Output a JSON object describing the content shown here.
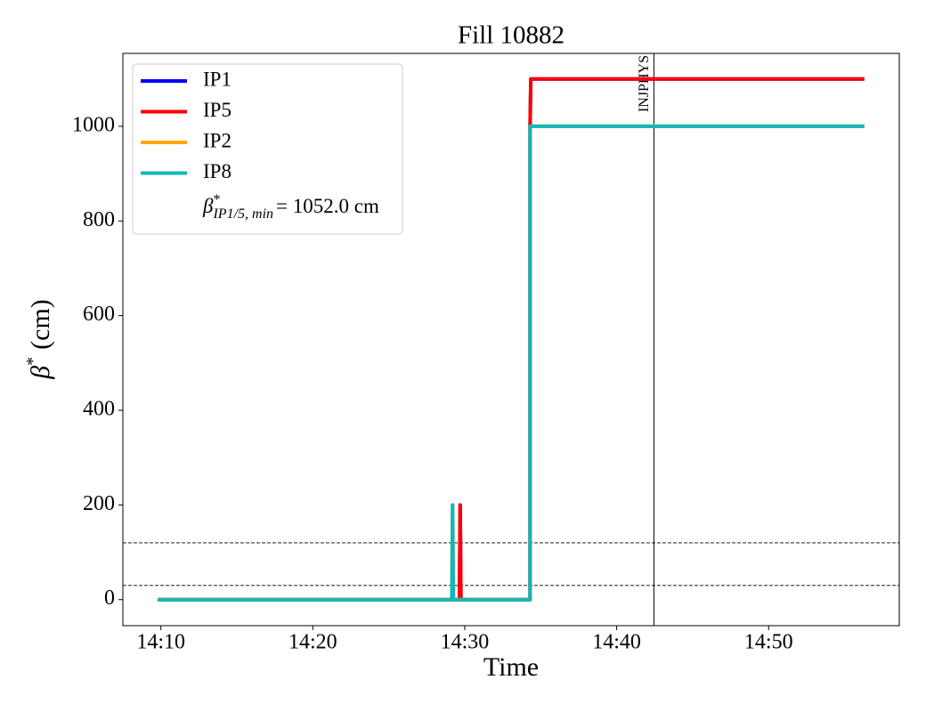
{
  "chart_data": {
    "type": "line",
    "title": "Fill 10882",
    "xlabel": "Time",
    "ylabel": {
      "symbol": "β",
      "superscript": "*",
      "text": "(cm)"
    },
    "xlim": [
      847.5,
      898.6
    ],
    "xticks": [
      {
        "value": 850,
        "label": "14:10"
      },
      {
        "value": 860,
        "label": "14:20"
      },
      {
        "value": 870,
        "label": "14:30"
      },
      {
        "value": 880,
        "label": "14:40"
      },
      {
        "value": 890,
        "label": "14:50"
      }
    ],
    "ylim": [
      -55,
      1154
    ],
    "yticks": [
      0,
      200,
      400,
      600,
      800,
      1000
    ],
    "series": [
      {
        "name": "IP1",
        "color": "#0000ff",
        "x": [
          849.8,
          869.65,
          869.7,
          869.75,
          874.3,
          874.3,
          874.35,
          896.3
        ],
        "values": [
          0,
          0,
          200,
          0,
          0,
          1000,
          1100,
          1100
        ]
      },
      {
        "name": "IP5",
        "color": "#ff0000",
        "x": [
          849.8,
          869.65,
          869.7,
          869.75,
          874.3,
          874.3,
          874.35,
          896.3
        ],
        "values": [
          0,
          0,
          200,
          0,
          0,
          1000,
          1100,
          1100
        ]
      },
      {
        "name": "IP2",
        "color": "#ffa500",
        "x": [
          849.8,
          869.15,
          869.2,
          869.25,
          874.3,
          874.3,
          896.3
        ],
        "values": [
          0,
          0,
          200,
          0,
          0,
          1000,
          1000
        ]
      },
      {
        "name": "IP8",
        "color": "#12b8b8",
        "x": [
          849.8,
          869.15,
          869.2,
          869.25,
          874.3,
          874.3,
          896.3
        ],
        "values": [
          0,
          0,
          200,
          0,
          0,
          1000,
          1000
        ]
      }
    ],
    "hlines": [
      30,
      120
    ],
    "vlines": [
      {
        "x": 882.45,
        "label": "INJPHYS"
      }
    ],
    "legend_note": {
      "symbol": "β",
      "superscript": "*",
      "subscript": "IP1/5, min",
      "text": "= 1052.0 cm"
    },
    "legend": "upper left"
  }
}
